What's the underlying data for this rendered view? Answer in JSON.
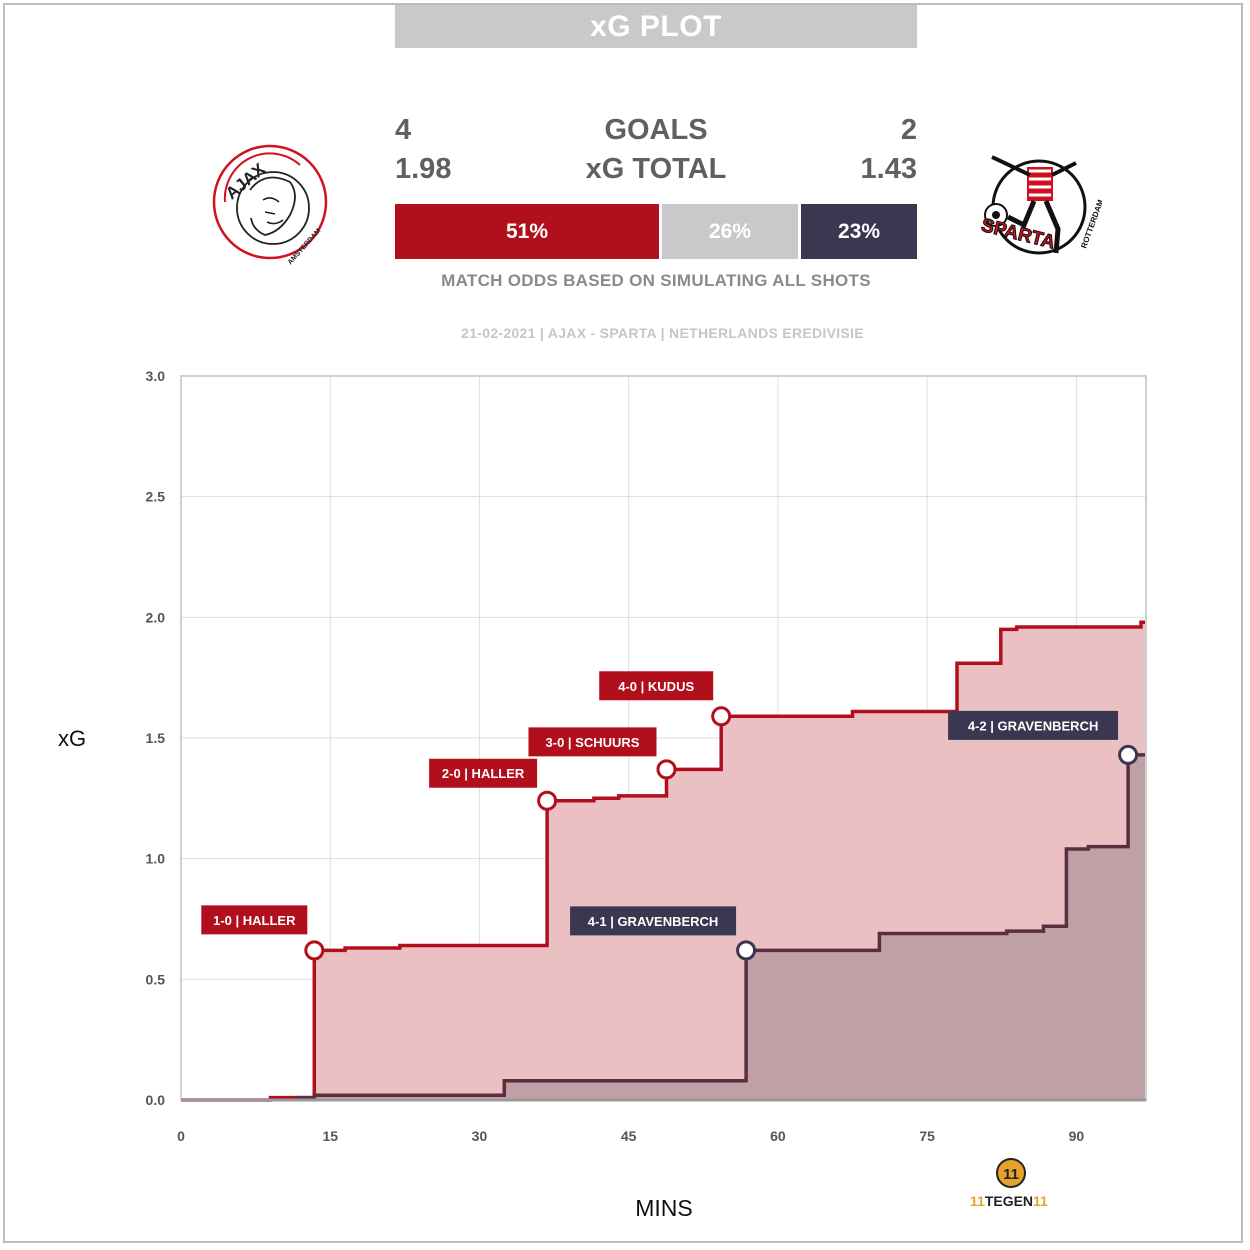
{
  "title": "xG PLOT",
  "home": {
    "goals": "4",
    "xg_total": "1.98",
    "logo_text": "AJAX",
    "logo_subtext": "AMSTERDAM"
  },
  "away": {
    "goals": "2",
    "xg_total": "1.43",
    "logo_text": "SPARTA",
    "logo_subtext": "ROTTERDAM"
  },
  "labels": {
    "goals": "GOALS",
    "xg_total": "xG TOTAL"
  },
  "odds": {
    "home": "51%",
    "draw": "26%",
    "away": "23%"
  },
  "odds_note": "MATCH ODDS BASED ON SIMULATING ALL SHOTS",
  "match_info": "21-02-2021 | AJAX - SPARTA | NETHERLANDS EREDIVISIE",
  "colors": {
    "home": "#b10f1c",
    "home_fill": "#ebc0c3",
    "away": "#3a3750",
    "away_line": "#5a2d40",
    "away_fill": "#bb9ea3",
    "draw": "#c9c9c9"
  },
  "brand": {
    "text_left": "11",
    "text_mid": "TEGEN",
    "text_right": "11",
    "mark": "11"
  },
  "chart_data": {
    "type": "line",
    "xlabel": "MINS",
    "ylabel": "xG",
    "xlim": [
      0,
      97
    ],
    "ylim": [
      0,
      3.0
    ],
    "x_ticks": [
      "0",
      "15",
      "30",
      "45",
      "60",
      "75",
      "90"
    ],
    "y_ticks": [
      "0.0",
      "0.5",
      "1.0",
      "1.5",
      "2.0",
      "2.5",
      "3.0"
    ],
    "grid": true,
    "series": [
      {
        "team": "home",
        "step_points": [
          [
            0,
            0.0
          ],
          [
            9,
            0.0
          ],
          [
            9,
            0.01
          ],
          [
            13.4,
            0.01
          ],
          [
            13.4,
            0.62
          ],
          [
            16.5,
            0.62
          ],
          [
            16.5,
            0.63
          ],
          [
            22,
            0.63
          ],
          [
            22,
            0.64
          ],
          [
            36.8,
            0.64
          ],
          [
            36.8,
            1.24
          ],
          [
            41.5,
            1.24
          ],
          [
            41.5,
            1.25
          ],
          [
            44,
            1.25
          ],
          [
            44,
            1.26
          ],
          [
            48.8,
            1.26
          ],
          [
            48.8,
            1.37
          ],
          [
            54.3,
            1.37
          ],
          [
            54.3,
            1.59
          ],
          [
            67.5,
            1.59
          ],
          [
            67.5,
            1.61
          ],
          [
            78,
            1.61
          ],
          [
            78,
            1.81
          ],
          [
            82.4,
            1.81
          ],
          [
            82.4,
            1.95
          ],
          [
            84,
            1.95
          ],
          [
            84,
            1.96
          ],
          [
            96.5,
            1.96
          ],
          [
            96.5,
            1.98
          ],
          [
            97,
            1.98
          ]
        ]
      },
      {
        "team": "away",
        "step_points": [
          [
            11.7,
            0.0
          ],
          [
            11.7,
            0.01
          ],
          [
            13.4,
            0.01
          ],
          [
            13.4,
            0.02
          ],
          [
            32.5,
            0.02
          ],
          [
            32.5,
            0.08
          ],
          [
            56.8,
            0.08
          ],
          [
            56.8,
            0.62
          ],
          [
            70.2,
            0.62
          ],
          [
            70.2,
            0.69
          ],
          [
            83,
            0.69
          ],
          [
            83,
            0.7
          ],
          [
            86.7,
            0.7
          ],
          [
            86.7,
            0.72
          ],
          [
            89,
            0.72
          ],
          [
            89,
            1.04
          ],
          [
            91.2,
            1.04
          ],
          [
            91.2,
            1.05
          ],
          [
            95.2,
            1.05
          ],
          [
            95.2,
            1.43
          ],
          [
            97,
            1.43
          ]
        ]
      }
    ],
    "goals": [
      {
        "team": "home",
        "minute": 13.4,
        "xg": 0.62,
        "label": "1-0 | HALLER"
      },
      {
        "team": "home",
        "minute": 36.8,
        "xg": 1.24,
        "label": "2-0 | HALLER"
      },
      {
        "team": "home",
        "minute": 48.8,
        "xg": 1.37,
        "label": "3-0 | SCHUURS"
      },
      {
        "team": "home",
        "minute": 54.3,
        "xg": 1.59,
        "label": "4-0 | KUDUS"
      },
      {
        "team": "away",
        "minute": 56.8,
        "xg": 0.62,
        "label": "4-1 | GRAVENBERCH"
      },
      {
        "team": "away",
        "minute": 95.2,
        "xg": 1.43,
        "label": "4-2 | GRAVENBERCH"
      }
    ]
  }
}
